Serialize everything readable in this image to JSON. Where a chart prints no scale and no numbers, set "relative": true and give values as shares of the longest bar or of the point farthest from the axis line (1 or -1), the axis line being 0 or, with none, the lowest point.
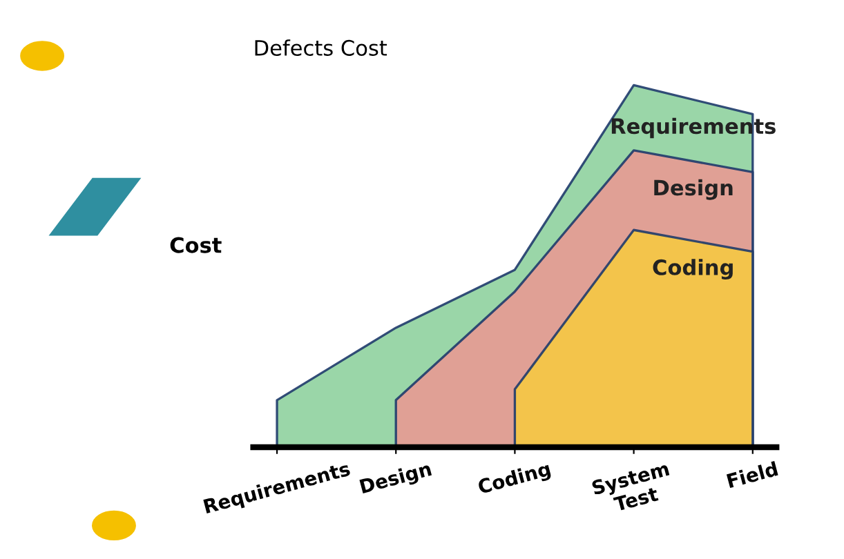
{
  "chart_data": {
    "type": "area",
    "title": "Defects Cost",
    "ylabel": "Cost",
    "relative": true,
    "categories": [
      "Requirements",
      "Design",
      "Coding",
      "System\nTest",
      "Field"
    ],
    "series": [
      {
        "name": "Requirements",
        "color": "#8fd19e",
        "values": [
          0.13,
          0.33,
          0.49,
          1.0,
          0.92
        ]
      },
      {
        "name": "Design",
        "color": "#e89a92",
        "values": [
          null,
          0.13,
          0.43,
          0.82,
          0.76
        ]
      },
      {
        "name": "Coding",
        "color": "#f5c842",
        "values": [
          null,
          null,
          0.16,
          0.6,
          0.54
        ]
      }
    ]
  }
}
